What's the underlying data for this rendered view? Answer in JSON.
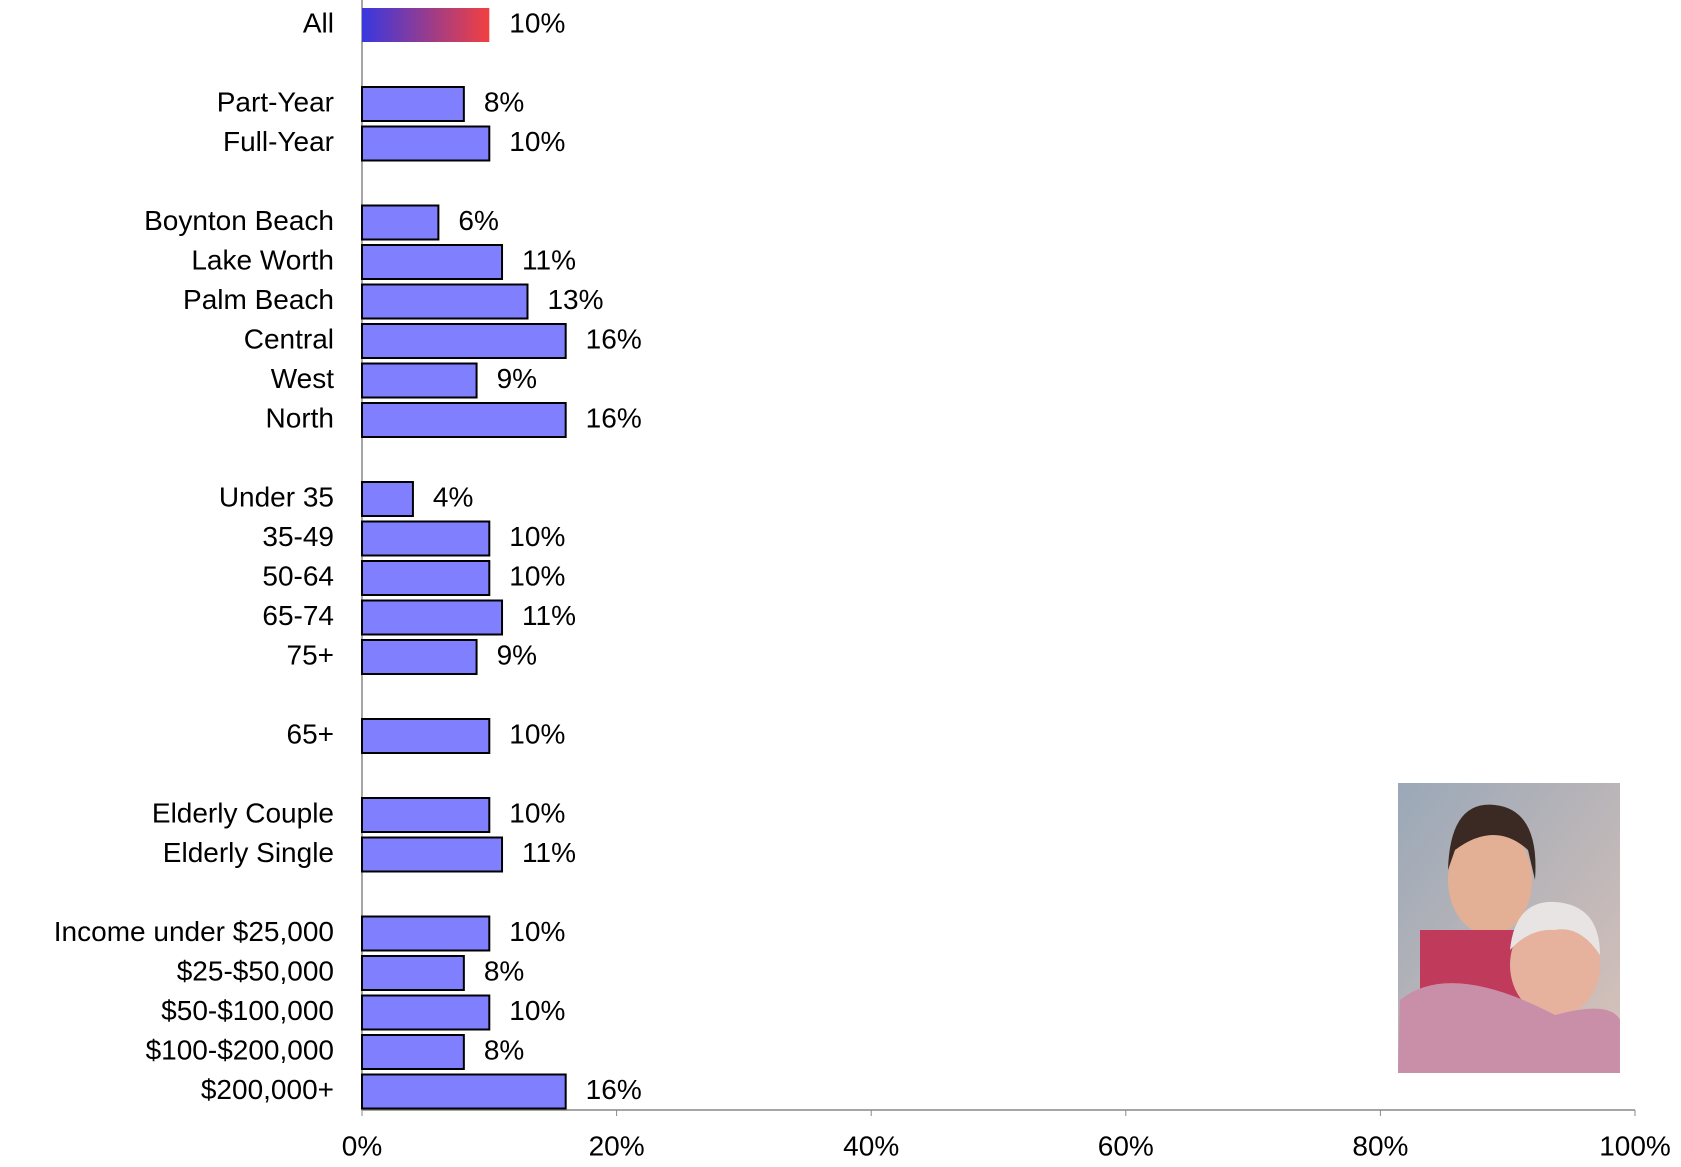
{
  "chart_data": {
    "type": "hbar",
    "categories": [
      "All",
      null,
      "Part-Year",
      "Full-Year",
      null,
      "Boynton Beach",
      "Lake Worth",
      "Palm Beach",
      "Central",
      "West",
      "North",
      null,
      "Under 35",
      "35-49",
      "50-64",
      "65-74",
      "75+",
      null,
      "65+",
      null,
      "Elderly Couple",
      "Elderly Single",
      null,
      "Income under $25,000",
      "$25-$50,000",
      "$50-$100,000",
      "$100-$200,000",
      "$200,000+"
    ],
    "values": [
      10,
      null,
      8,
      10,
      null,
      6,
      11,
      13,
      16,
      9,
      16,
      null,
      4,
      10,
      10,
      11,
      9,
      null,
      10,
      null,
      10,
      11,
      null,
      10,
      8,
      10,
      8,
      16
    ],
    "value_labels": [
      "10%",
      null,
      "8%",
      "10%",
      null,
      "6%",
      "11%",
      "13%",
      "16%",
      "9%",
      "16%",
      null,
      "4%",
      "10%",
      "10%",
      "11%",
      "9%",
      null,
      "10%",
      null,
      "10%",
      "11%",
      null,
      "10%",
      "8%",
      "10%",
      "8%",
      "16%"
    ],
    "color": "#8080ff",
    "highlight_gradient": [
      "#3838e0",
      "#f24040"
    ],
    "xlim": [
      0,
      100
    ],
    "xticks": [
      {
        "value": 0,
        "label": "0%"
      },
      {
        "value": 20,
        "label": "20%"
      },
      {
        "value": 40,
        "label": "40%"
      },
      {
        "value": 60,
        "label": "60%"
      },
      {
        "value": 80,
        "label": "80%"
      },
      {
        "value": 100,
        "label": "100%"
      }
    ]
  }
}
